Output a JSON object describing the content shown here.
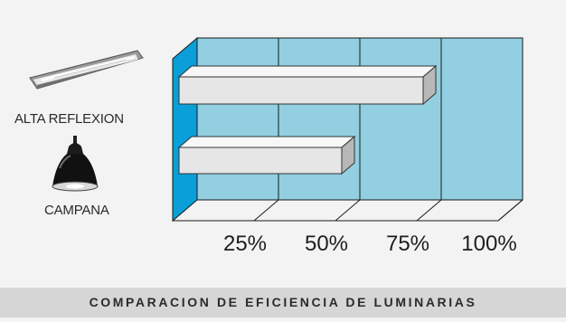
{
  "chart_data": {
    "type": "bar",
    "orientation": "horizontal",
    "style": "3d",
    "categories": [
      "ALTA REFLEXION",
      "CAMPANA"
    ],
    "values": [
      75,
      50
    ],
    "xlim": [
      0,
      100
    ],
    "x_ticks": [
      "25%",
      "50%",
      "75%",
      "100%"
    ],
    "title": "COMPARACION DE EFICIENCIA DE LUMINARIAS",
    "grid": true
  },
  "colors": {
    "wall": "#92cfe1",
    "left_wall": "#0a9fd8",
    "bar_front": "#e6e6e6",
    "bar_top": "#f7f7f7",
    "bar_side": "#b8b8b8",
    "footer_bg": "#d6d6d6"
  },
  "icons": [
    "fluorescent-fixture-icon",
    "bell-lamp-icon"
  ]
}
